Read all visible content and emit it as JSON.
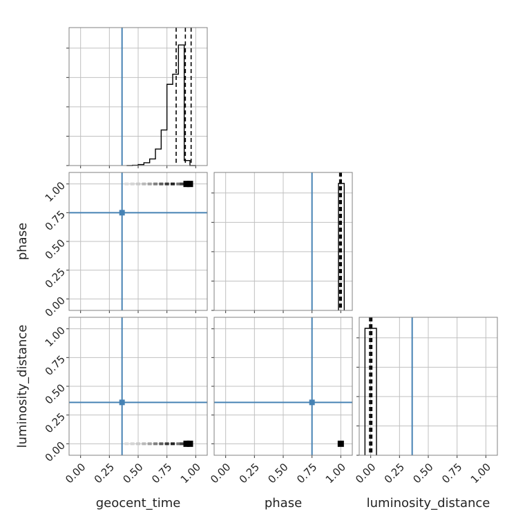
{
  "chart_data": {
    "type": "corner",
    "parameters": [
      "geocent_time",
      "phase",
      "luminosity_distance"
    ],
    "axis_labels": {
      "x": [
        "geocent_time",
        "phase",
        "luminosity_distance"
      ],
      "y": [
        "",
        "phase",
        "luminosity_distance"
      ]
    },
    "ticks": [
      0.0,
      0.25,
      0.5,
      0.75,
      1.0
    ],
    "tick_labels": [
      "0.00",
      "0.25",
      "0.50",
      "0.75",
      "1.00"
    ],
    "axis_range": [
      -0.1,
      1.1
    ],
    "grid": true,
    "colors": {
      "truth": "#4682b4",
      "hist": "#000000",
      "grid": "#c0c0c0",
      "frame": "#808080"
    },
    "truths": {
      "geocent_time": 0.36,
      "phase": 0.75,
      "luminosity_distance": 0.36
    },
    "quantiles": {
      "geocent_time": [
        0.83,
        0.91,
        0.96
      ],
      "phase": [
        0.99,
        1.0,
        1.005
      ],
      "luminosity_distance": [
        -0.01,
        0.0,
        0.01
      ]
    },
    "histograms": {
      "geocent_time": {
        "bins": [
          0.4,
          0.45,
          0.5,
          0.55,
          0.6,
          0.65,
          0.7,
          0.75,
          0.8,
          0.85,
          0.9,
          0.95,
          1.0
        ],
        "counts": [
          0,
          0.2,
          0.8,
          2.2,
          5.2,
          13,
          28,
          64,
          72,
          95,
          4,
          0
        ],
        "ymax": 100
      },
      "phase": {
        "bins": [
          0.98,
          1.03
        ],
        "counts": [
          1.0
        ],
        "ymax": 1.0
      },
      "luminosity_distance": {
        "bins": [
          -0.05,
          0.05
        ],
        "counts": [
          1.0
        ],
        "ymax": 1.0
      }
    },
    "scatter": {
      "phase_vs_geocent_time": {
        "x": [
          0.4,
          0.45,
          0.5,
          0.55,
          0.6,
          0.65,
          0.7,
          0.75,
          0.8,
          0.85,
          0.88,
          0.92,
          0.95
        ],
        "y": [
          1.0,
          1.0,
          1.0,
          1.0,
          1.0,
          1.0,
          1.0,
          1.0,
          1.0,
          1.0,
          1.0,
          1.0,
          1.0
        ],
        "density": [
          0.05,
          0.08,
          0.12,
          0.2,
          0.3,
          0.45,
          0.6,
          0.75,
          0.85,
          0.5,
          0.7,
          1.0,
          1.0
        ]
      },
      "luminosity_distance_vs_geocent_time": {
        "x": [
          0.4,
          0.45,
          0.5,
          0.55,
          0.6,
          0.65,
          0.7,
          0.75,
          0.8,
          0.85,
          0.88,
          0.92,
          0.95
        ],
        "y": [
          0.0,
          0.0,
          0.0,
          0.0,
          0.0,
          0.0,
          0.0,
          0.0,
          0.0,
          0.0,
          0.0,
          0.0,
          0.0
        ],
        "density": [
          0.05,
          0.08,
          0.12,
          0.2,
          0.3,
          0.45,
          0.6,
          0.75,
          0.85,
          0.5,
          0.7,
          1.0,
          1.0
        ]
      },
      "luminosity_distance_vs_phase": {
        "x": [
          1.0
        ],
        "y": [
          0.0
        ],
        "density": [
          1.0
        ]
      }
    }
  }
}
